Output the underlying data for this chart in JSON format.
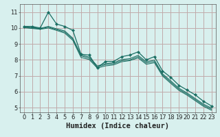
{
  "xlabel": "Humidex (Indice chaleur)",
  "ylabel": "",
  "bg_color": "#d8f0ee",
  "grid_color": "#c0aaaa",
  "line_color": "#1a6e63",
  "xlim": [
    -0.5,
    23.5
  ],
  "ylim": [
    4.7,
    11.5
  ],
  "xticks": [
    0,
    1,
    2,
    3,
    4,
    5,
    6,
    7,
    8,
    9,
    10,
    11,
    12,
    13,
    14,
    15,
    16,
    17,
    18,
    19,
    20,
    21,
    22,
    23
  ],
  "yticks": [
    5,
    6,
    7,
    8,
    9,
    10,
    11
  ],
  "series": [
    [
      10.1,
      10.1,
      10.0,
      11.0,
      10.25,
      10.1,
      9.85,
      8.35,
      8.3,
      7.5,
      7.9,
      7.9,
      8.2,
      8.3,
      8.5,
      8.0,
      8.2,
      7.3,
      6.9,
      6.4,
      6.1,
      5.8,
      5.4,
      5.1
    ],
    [
      10.05,
      10.0,
      9.95,
      10.05,
      9.9,
      9.75,
      9.3,
      8.25,
      8.1,
      7.55,
      7.7,
      7.75,
      7.95,
      8.0,
      8.2,
      7.8,
      7.9,
      7.05,
      6.6,
      6.15,
      5.85,
      5.5,
      5.15,
      4.9
    ],
    [
      10.08,
      10.03,
      9.98,
      10.1,
      9.95,
      9.82,
      9.36,
      8.3,
      8.18,
      7.62,
      7.76,
      7.82,
      8.02,
      8.08,
      8.28,
      7.88,
      7.98,
      7.12,
      6.68,
      6.22,
      5.92,
      5.57,
      5.22,
      4.97
    ],
    [
      10.02,
      9.97,
      9.92,
      10.0,
      9.85,
      9.68,
      9.22,
      8.15,
      8.02,
      7.48,
      7.62,
      7.68,
      7.88,
      7.95,
      8.12,
      7.72,
      7.82,
      6.98,
      6.52,
      6.08,
      5.78,
      5.43,
      5.08,
      4.83
    ]
  ],
  "font_family": "monospace",
  "tick_fontsize": 6,
  "label_fontsize": 7.5
}
